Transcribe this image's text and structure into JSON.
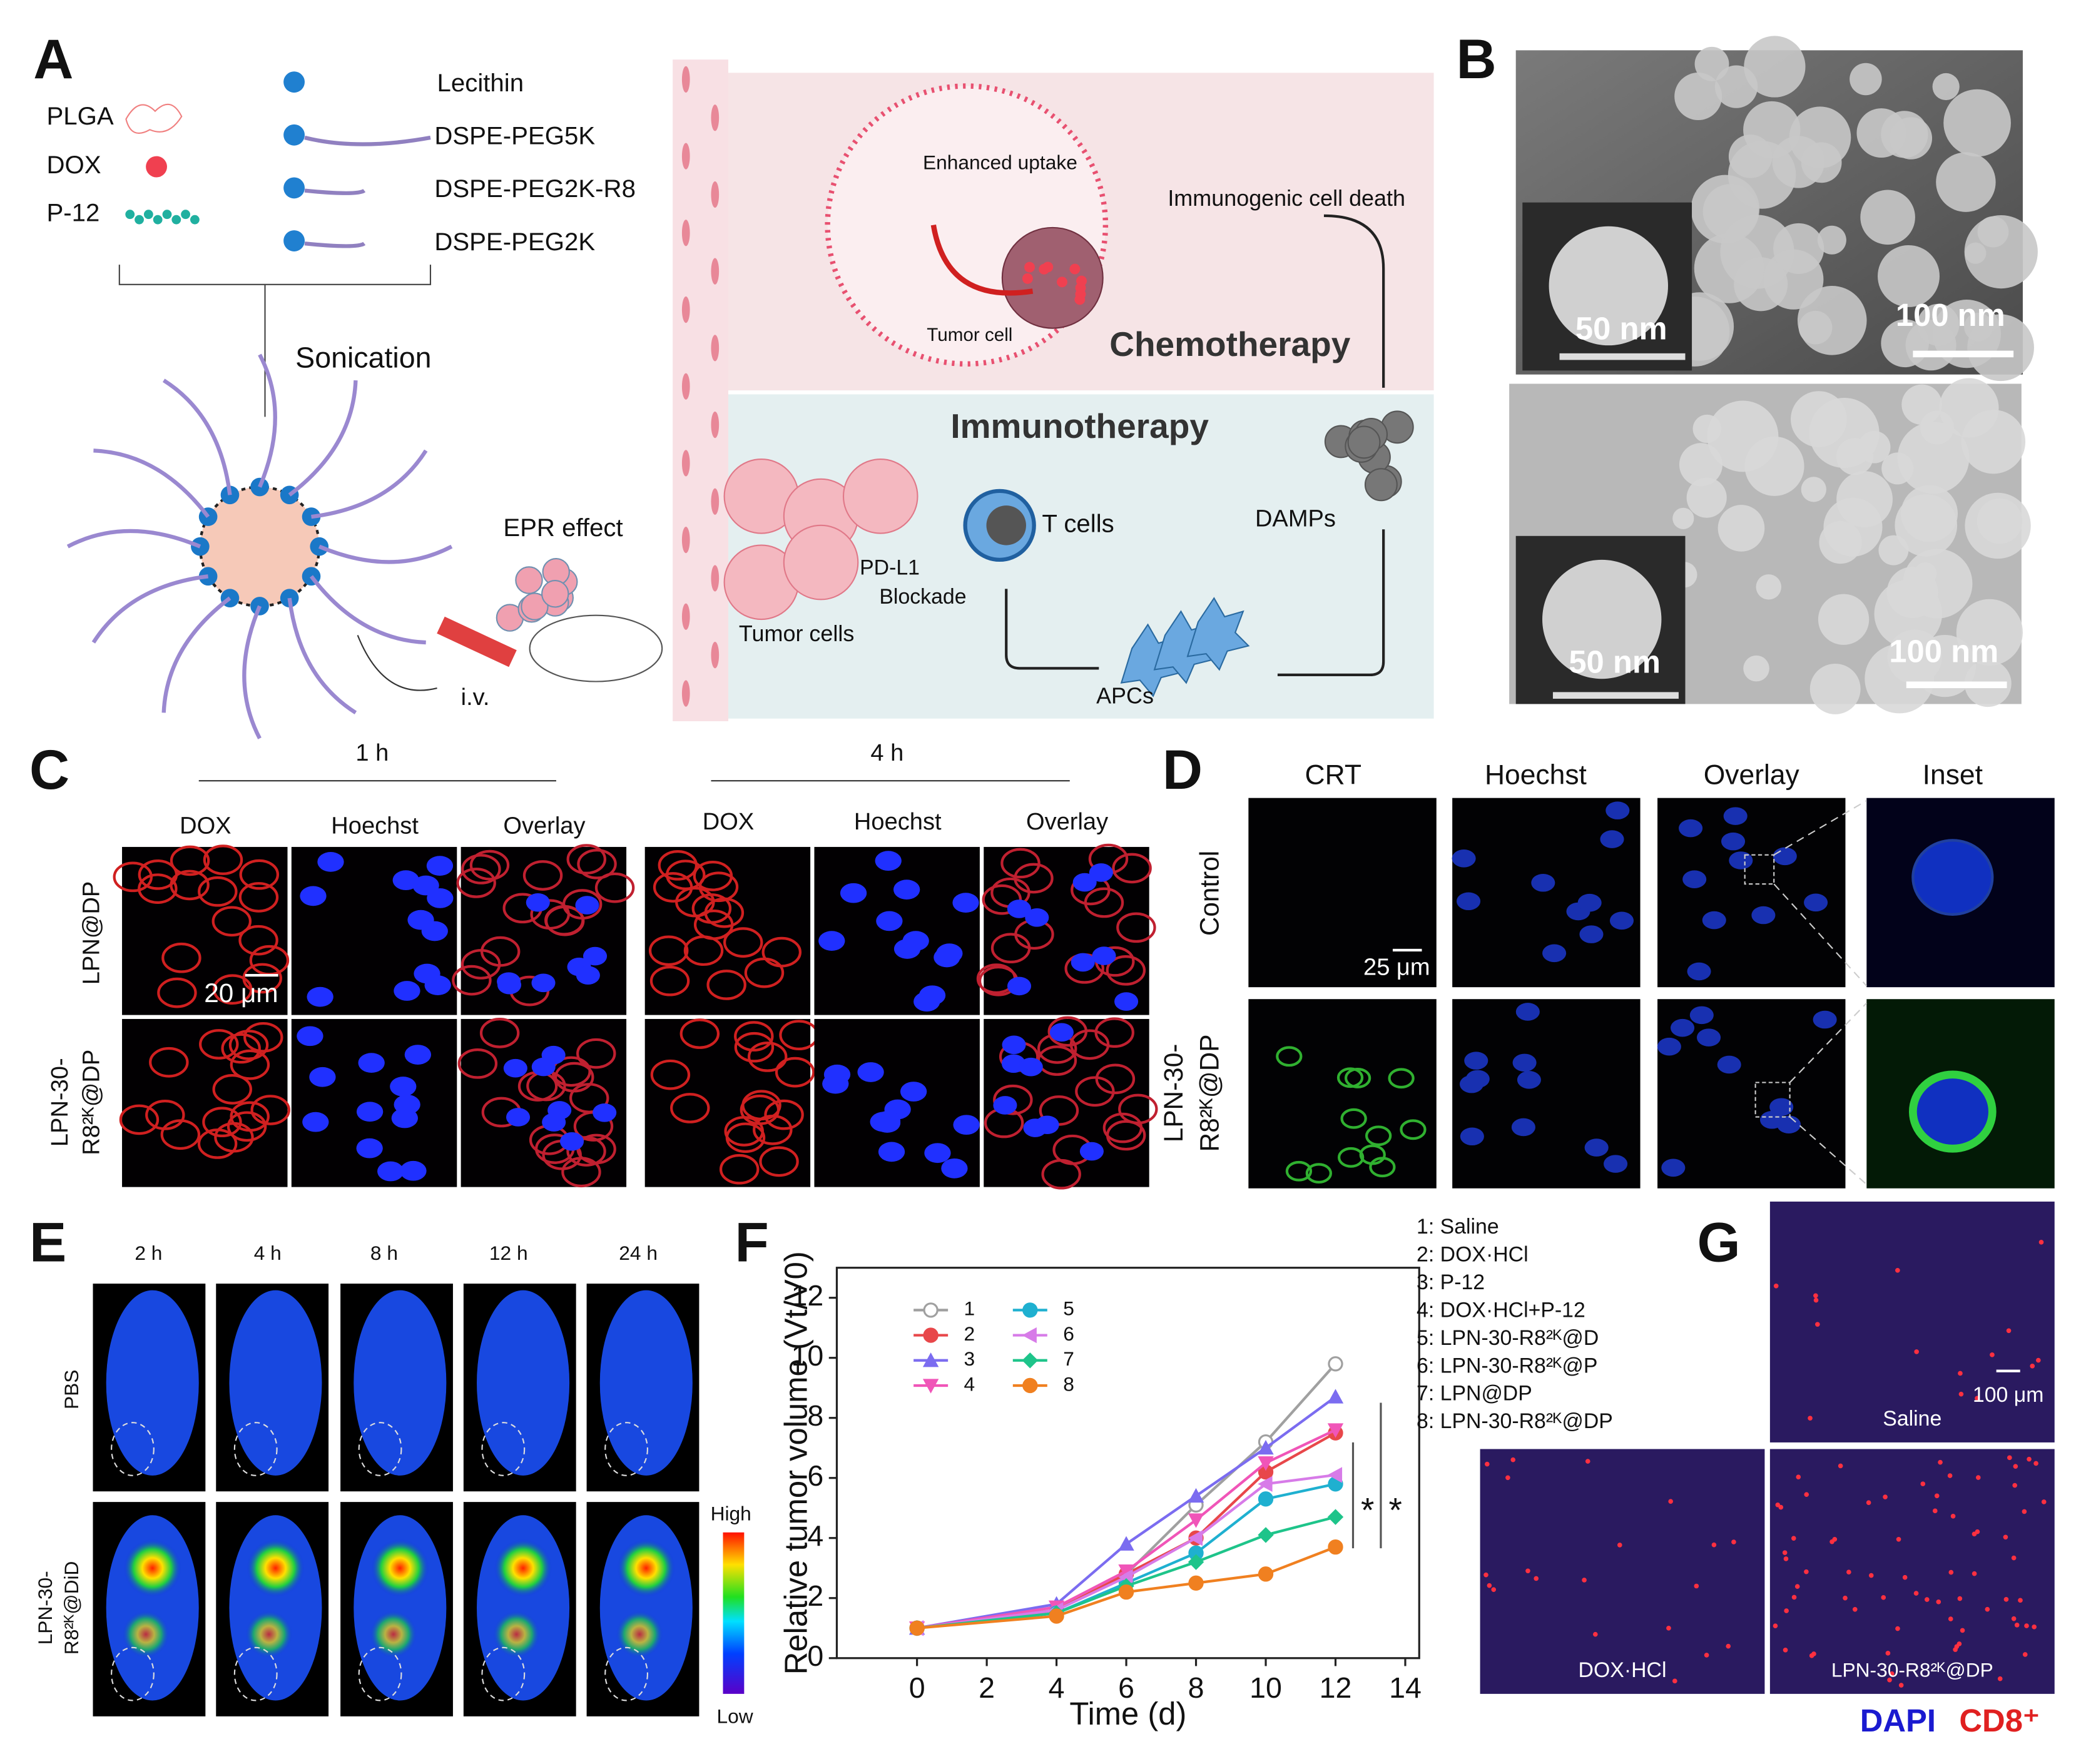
{
  "panel_labels": [
    "A",
    "B",
    "C",
    "D",
    "E",
    "F",
    "G"
  ],
  "panel_a": {
    "components": [
      "PLGA",
      "DOX",
      "P-12"
    ],
    "lipids": [
      "Lecithin",
      "DSPE-PEG5K",
      "DSPE-PEG2K-R8",
      "DSPE-PEG2K"
    ],
    "step": "Sonication",
    "epr": "EPR effect",
    "route": "i.v.",
    "uptake": "Enhanced uptake",
    "tumor_cell": "Tumor cell",
    "icd": "Immunogenic cell death",
    "chemo": "Chemotherapy",
    "immuno": "Immunotherapy",
    "damps": "DAMPs",
    "t_cells": "T cells",
    "blockade": [
      "PD-L1",
      "Blockade"
    ],
    "tumor_cells": "Tumor cells",
    "apcs": "APCs"
  },
  "panel_b": {
    "scale_bars": [
      "50 nm",
      "100 nm",
      "50 nm",
      "100 nm"
    ]
  },
  "panel_c": {
    "times": [
      "1 h",
      "4 h"
    ],
    "columns": [
      "DOX",
      "Hoechst",
      "Overlay",
      "DOX",
      "Hoechst",
      "Overlay"
    ],
    "rows": [
      [
        "LPN@DP"
      ],
      [
        "LPN-30-",
        "R8²ᴷ@DP"
      ]
    ],
    "scale_bar": "20 μm"
  },
  "panel_d": {
    "columns": [
      "CRT",
      "Hoechst",
      "Overlay",
      "Inset"
    ],
    "rows": [
      [
        "Control"
      ],
      [
        "LPN-30-",
        "R8²ᴷ@DP"
      ]
    ],
    "scale_bar": "25 μm"
  },
  "panel_e": {
    "times": [
      "2 h",
      "4 h",
      "8 h",
      "12 h",
      "24 h"
    ],
    "rows": [
      [
        "PBS"
      ],
      [
        "LPN-30-",
        "R8²ᴷ@DiD"
      ]
    ],
    "colorbar": [
      "High",
      "Low"
    ]
  },
  "panel_g": {
    "images": [
      "Saline",
      "DOX·HCl",
      "LPN-30-R8²ᴷ@DP"
    ],
    "scale_bar": "100 μm",
    "stains": [
      "DAPI",
      "CD8⁺"
    ]
  },
  "chart_data": {
    "type": "line",
    "xlabel": "Time (d)",
    "ylabel": "Relative tumor volume (Vt/V0)",
    "x": [
      0,
      4,
      6,
      8,
      10,
      12
    ],
    "xlim": [
      -2.3,
      14.4
    ],
    "ylim": [
      0,
      13
    ],
    "xticks": [
      0,
      2,
      4,
      6,
      8,
      10,
      12,
      14
    ],
    "yticks": [
      0,
      2,
      4,
      6,
      8,
      10,
      12
    ],
    "series": [
      {
        "name": "1",
        "color": "#a0a0a0",
        "marker": "circle-open",
        "values": [
          1,
          1.6,
          2.8,
          5.1,
          7.2,
          9.8
        ]
      },
      {
        "name": "2",
        "color": "#e8474a",
        "marker": "circle",
        "values": [
          1,
          1.6,
          2.8,
          4.0,
          6.2,
          7.5
        ]
      },
      {
        "name": "3",
        "color": "#7b6cf0",
        "marker": "triangle",
        "values": [
          1,
          1.8,
          3.8,
          5.4,
          7.0,
          8.7
        ]
      },
      {
        "name": "4",
        "color": "#f055b8",
        "marker": "triangle-down",
        "values": [
          1,
          1.7,
          2.9,
          4.6,
          6.5,
          7.6
        ]
      },
      {
        "name": "5",
        "color": "#1fb0d0",
        "marker": "circle",
        "values": [
          1,
          1.5,
          2.5,
          3.5,
          5.3,
          5.8
        ]
      },
      {
        "name": "6",
        "color": "#d77be8",
        "marker": "triangle-left",
        "values": [
          1,
          1.6,
          2.7,
          4.0,
          5.8,
          6.1
        ]
      },
      {
        "name": "7",
        "color": "#1ec48a",
        "marker": "diamond",
        "values": [
          1,
          1.5,
          2.4,
          3.2,
          4.1,
          4.7
        ]
      },
      {
        "name": "8",
        "color": "#f08020",
        "marker": "circle",
        "values": [
          1,
          1.4,
          2.2,
          2.5,
          2.8,
          3.7
        ]
      }
    ],
    "group_labels": [
      "1: Saline",
      "2: DOX·HCl",
      "3: P-12",
      "4: DOX·HCl+P-12",
      "5: LPN-30-R8²ᴷ@D",
      "6: LPN-30-R8²ᴷ@P",
      "7: LPN@DP",
      "8: LPN-30-R8²ᴷ@DP"
    ],
    "annotations": [
      "*",
      "*"
    ]
  }
}
